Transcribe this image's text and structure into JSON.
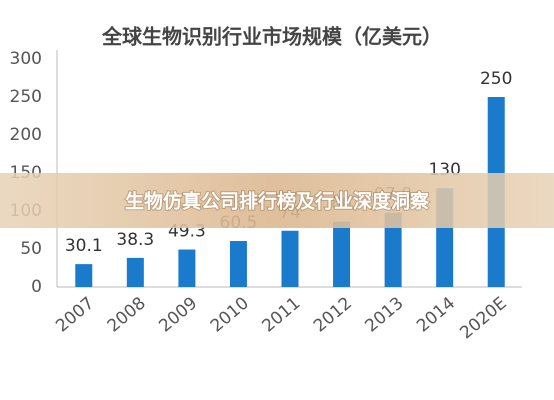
{
  "chart_data": {
    "type": "bar",
    "title": "全球生物识别行业市场规模（亿美元）",
    "categories": [
      "2007",
      "2008",
      "2009",
      "2010",
      "2011",
      "2012",
      "2013",
      "2014",
      "2020E"
    ],
    "values": [
      30.1,
      38.3,
      49.3,
      60.5,
      74,
      86,
      97.8,
      130,
      250
    ],
    "color": "#1a7acb",
    "ylim": [
      0,
      300
    ],
    "yticks": [
      0,
      50,
      100,
      150,
      200,
      250,
      300
    ],
    "grid": false
  },
  "overlay": {
    "text": "生物仿真公司排行榜及行业深度洞察"
  }
}
